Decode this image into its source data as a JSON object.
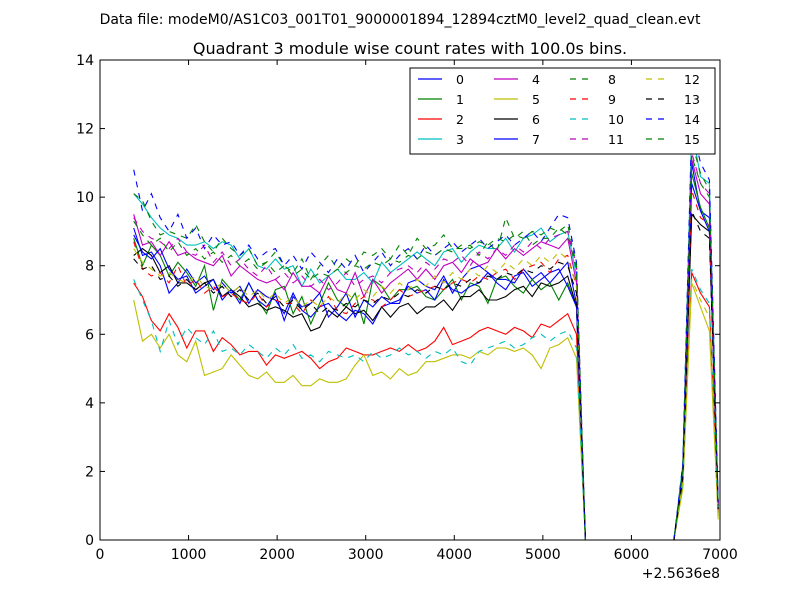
{
  "figure": {
    "suptitle": "Data file: modeM0/AS1C03_001T01_9000001894_12894cztM0_level2_quad_clean.evt"
  },
  "chart_data": {
    "type": "line",
    "title": "Quadrant 3 module wise count rates with 100.0s bins.",
    "xlabel": "",
    "ylabel": "",
    "xlim": [
      0,
      7000
    ],
    "ylim": [
      0,
      14
    ],
    "x_offset_label": "+2.5636e8",
    "x_ticks": [
      "0",
      "1000",
      "2000",
      "3000",
      "4000",
      "5000",
      "6000",
      "7000"
    ],
    "y_ticks": [
      "0",
      "2",
      "4",
      "6",
      "8",
      "10",
      "12",
      "14"
    ],
    "grid": false,
    "legend_placement": "top-right",
    "legend_columns": 4,
    "x": [
      380,
      480,
      580,
      680,
      780,
      880,
      980,
      1080,
      1180,
      1280,
      1380,
      1480,
      1580,
      1680,
      1780,
      1880,
      1980,
      2080,
      2180,
      2280,
      2380,
      2480,
      2580,
      2680,
      2780,
      2880,
      2980,
      3080,
      3180,
      3280,
      3380,
      3480,
      3580,
      3680,
      3780,
      3880,
      3980,
      4080,
      4180,
      4280,
      4380,
      4480,
      4580,
      4680,
      4780,
      4880,
      4980,
      5080,
      5180,
      5280,
      5380,
      5480,
      5580,
      5680,
      5780,
      5880,
      5980,
      6080,
      6180,
      6280,
      6380,
      6480,
      6580,
      6680,
      6780,
      6880,
      6980
    ],
    "series": [
      {
        "name": "0",
        "color": "#0000ff",
        "dash": "solid",
        "values": [
          9.1,
          8.3,
          8.4,
          8.0,
          7.2,
          7.5,
          7.9,
          7.5,
          7.7,
          7.3,
          7.5,
          7.2,
          7.4,
          6.9,
          7.3,
          7.1,
          7.0,
          6.6,
          7.2,
          6.7,
          6.5,
          6.8,
          6.9,
          6.6,
          6.4,
          6.7,
          6.6,
          6.3,
          6.8,
          6.9,
          6.9,
          7.5,
          7.6,
          7.4,
          7.3,
          7.7,
          7.2,
          7.6,
          7.9,
          8.0,
          7.8,
          7.6,
          7.6,
          7.5,
          7.9,
          7.6,
          7.8,
          7.5,
          7.8,
          8.1,
          6.9,
          0.0,
          0.0,
          0.0,
          0.0,
          0.0,
          0.0,
          0.0,
          0.0,
          0.0,
          0.0,
          0.0,
          2.0,
          11.0,
          9.6,
          9.4,
          1.0
        ]
      },
      {
        "name": "1",
        "color": "#008000",
        "dash": "solid",
        "values": [
          8.8,
          8.0,
          8.6,
          8.3,
          7.7,
          8.1,
          7.8,
          7.4,
          8.0,
          6.7,
          7.6,
          7.3,
          7.0,
          7.5,
          7.0,
          6.6,
          7.3,
          7.4,
          6.6,
          7.1,
          6.3,
          6.9,
          7.5,
          7.0,
          6.8,
          7.2,
          6.3,
          7.6,
          7.4,
          7.0,
          7.3,
          7.3,
          7.4,
          7.1,
          7.0,
          7.3,
          7.6,
          7.0,
          7.5,
          7.4,
          6.9,
          7.6,
          7.7,
          7.4,
          7.2,
          7.6,
          7.3,
          7.5,
          7.0,
          7.5,
          6.8,
          0.0,
          0.0,
          0.0,
          0.0,
          0.0,
          0.0,
          0.0,
          0.0,
          0.0,
          0.0,
          0.0,
          1.9,
          10.7,
          9.7,
          9.1,
          0.8
        ]
      },
      {
        "name": "2",
        "color": "#ff0000",
        "dash": "solid",
        "values": [
          7.5,
          7.1,
          6.4,
          6.1,
          6.6,
          6.2,
          5.6,
          6.1,
          6.1,
          5.5,
          5.9,
          5.7,
          5.4,
          5.5,
          5.5,
          5.1,
          5.4,
          5.3,
          5.4,
          5.5,
          5.3,
          5.0,
          5.2,
          5.3,
          5.6,
          5.5,
          5.4,
          5.4,
          5.5,
          5.6,
          5.5,
          5.7,
          5.5,
          5.6,
          5.8,
          6.2,
          5.7,
          5.8,
          5.9,
          6.1,
          6.2,
          6.1,
          6.0,
          6.2,
          6.1,
          5.9,
          6.3,
          6.2,
          6.4,
          6.6,
          6.0,
          0.0,
          0.0,
          0.0,
          0.0,
          0.0,
          0.0,
          0.0,
          0.0,
          0.0,
          0.0,
          0.0,
          1.7,
          7.8,
          7.2,
          6.8,
          0.8
        ]
      },
      {
        "name": "3",
        "color": "#00bfbf",
        "dash": "solid",
        "values": [
          10.1,
          9.8,
          9.4,
          9.1,
          8.9,
          8.8,
          8.6,
          8.6,
          8.7,
          8.5,
          8.7,
          8.6,
          8.2,
          8.5,
          8.0,
          7.9,
          8.2,
          7.9,
          8.0,
          7.4,
          7.9,
          7.5,
          7.7,
          7.9,
          7.6,
          7.6,
          7.8,
          7.5,
          8.1,
          7.8,
          8.0,
          8.2,
          8.4,
          8.2,
          8.0,
          8.4,
          8.5,
          8.1,
          8.4,
          8.6,
          8.5,
          8.5,
          8.8,
          8.4,
          8.8,
          8.9,
          9.1,
          8.7,
          8.9,
          9.0,
          7.7,
          0.0,
          0.0,
          0.0,
          0.0,
          0.0,
          0.0,
          0.0,
          0.0,
          0.0,
          0.0,
          0.0,
          2.2,
          12.0,
          10.6,
          10.4,
          1.0
        ]
      },
      {
        "name": "4",
        "color": "#bf00bf",
        "dash": "solid",
        "values": [
          9.5,
          8.6,
          8.7,
          8.3,
          8.7,
          8.3,
          8.4,
          8.2,
          8.1,
          8.0,
          8.3,
          7.7,
          8.0,
          7.8,
          7.6,
          7.5,
          7.6,
          7.3,
          7.8,
          7.4,
          7.4,
          7.2,
          7.7,
          7.3,
          7.2,
          7.8,
          7.1,
          7.6,
          7.2,
          7.5,
          7.7,
          7.9,
          7.6,
          7.9,
          7.6,
          8.0,
          8.1,
          7.8,
          8.2,
          8.0,
          8.1,
          8.5,
          8.2,
          8.5,
          8.3,
          8.5,
          8.7,
          8.6,
          8.5,
          8.8,
          7.5,
          0.0,
          0.0,
          0.0,
          0.0,
          0.0,
          0.0,
          0.0,
          0.0,
          0.0,
          0.0,
          0.0,
          2.0,
          11.1,
          10.1,
          9.8,
          1.0
        ]
      },
      {
        "name": "5",
        "color": "#bfbf00",
        "dash": "solid",
        "values": [
          7.0,
          5.8,
          6.0,
          5.6,
          6.0,
          5.4,
          5.2,
          5.8,
          4.8,
          4.9,
          5.0,
          5.4,
          5.1,
          4.8,
          4.7,
          4.9,
          4.6,
          4.6,
          4.8,
          4.5,
          4.5,
          4.7,
          4.6,
          4.6,
          4.7,
          5.1,
          5.4,
          4.8,
          4.9,
          4.7,
          5.0,
          4.8,
          4.9,
          5.2,
          5.2,
          5.3,
          5.4,
          5.4,
          5.3,
          5.5,
          5.4,
          5.6,
          5.6,
          5.5,
          5.6,
          5.4,
          5.0,
          5.6,
          5.7,
          5.9,
          5.3,
          0.0,
          0.0,
          0.0,
          0.0,
          0.0,
          0.0,
          0.0,
          0.0,
          0.0,
          0.0,
          0.0,
          1.5,
          7.5,
          6.8,
          6.1,
          0.6
        ]
      },
      {
        "name": "6",
        "color": "#000000",
        "dash": "solid",
        "values": [
          8.3,
          8.5,
          8.3,
          7.8,
          8.0,
          7.5,
          7.5,
          7.3,
          7.5,
          7.6,
          7.1,
          7.3,
          7.1,
          6.8,
          6.9,
          6.7,
          6.8,
          6.7,
          6.5,
          6.6,
          6.1,
          6.2,
          6.7,
          6.5,
          6.8,
          6.6,
          6.7,
          6.4,
          6.8,
          6.5,
          6.8,
          6.9,
          6.6,
          6.8,
          6.8,
          7.0,
          6.7,
          7.1,
          7.1,
          7.3,
          7.0,
          7.0,
          7.1,
          7.3,
          7.4,
          7.1,
          7.5,
          7.4,
          7.5,
          7.7,
          6.8,
          0.0,
          0.0,
          0.0,
          0.0,
          0.0,
          0.0,
          0.0,
          0.0,
          0.0,
          0.0,
          0.0,
          1.8,
          9.5,
          9.2,
          9.0,
          0.9
        ]
      },
      {
        "name": "7",
        "color": "#0000ff",
        "dash": "solid",
        "values": [
          8.9,
          8.4,
          8.2,
          8.5,
          7.9,
          7.6,
          7.7,
          7.2,
          7.4,
          7.6,
          7.0,
          7.3,
          6.9,
          7.5,
          7.0,
          6.8,
          7.2,
          6.4,
          7.1,
          6.8,
          6.9,
          7.2,
          6.5,
          6.8,
          7.2,
          6.5,
          7.0,
          6.8,
          7.1,
          6.9,
          7.0,
          7.4,
          7.2,
          7.3,
          7.0,
          7.6,
          7.3,
          7.2,
          7.4,
          7.5,
          7.8,
          7.5,
          7.3,
          7.7,
          7.8,
          7.4,
          7.6,
          7.8,
          7.9,
          7.4,
          6.8,
          0.0,
          0.0,
          0.0,
          0.0,
          0.0,
          0.0,
          0.0,
          0.0,
          0.0,
          0.0,
          0.0,
          2.0,
          10.4,
          9.6,
          9.0,
          1.0
        ]
      },
      {
        "name": "8",
        "color": "#008000",
        "dash": "dashed",
        "values": [
          10.1,
          9.9,
          9.3,
          8.9,
          9.0,
          8.9,
          8.8,
          9.2,
          8.7,
          8.4,
          8.8,
          8.5,
          8.3,
          8.5,
          8.0,
          8.1,
          8.4,
          8.0,
          7.8,
          8.2,
          7.6,
          8.0,
          8.3,
          7.9,
          8.2,
          8.0,
          8.4,
          8.3,
          8.5,
          8.2,
          8.6,
          8.3,
          8.8,
          8.5,
          8.6,
          8.9,
          8.5,
          8.5,
          8.6,
          8.3,
          8.7,
          8.4,
          9.4,
          8.8,
          9.0,
          8.6,
          8.8,
          8.8,
          9.1,
          8.9,
          7.9,
          0.0,
          0.0,
          0.0,
          0.0,
          0.0,
          0.0,
          0.0,
          0.0,
          0.0,
          0.0,
          0.0,
          2.1,
          11.6,
          10.7,
          10.2,
          1.0
        ]
      },
      {
        "name": "9",
        "color": "#ff0000",
        "dash": "dashed",
        "values": [
          8.7,
          7.9,
          7.7,
          7.8,
          7.5,
          8.0,
          7.4,
          7.6,
          7.2,
          7.4,
          7.1,
          7.2,
          7.0,
          6.9,
          7.2,
          6.8,
          7.0,
          6.9,
          6.9,
          6.6,
          7.0,
          6.8,
          7.1,
          6.7,
          6.6,
          6.9,
          7.1,
          7.0,
          6.8,
          7.0,
          7.3,
          7.1,
          7.2,
          7.3,
          7.4,
          7.3,
          7.5,
          7.6,
          7.5,
          7.7,
          7.6,
          7.8,
          7.9,
          7.6,
          7.9,
          8.0,
          8.1,
          7.8,
          8.2,
          8.3,
          7.4,
          0.0,
          0.0,
          0.0,
          0.0,
          0.0,
          0.0,
          0.0,
          0.0,
          0.0,
          0.0,
          0.0,
          1.9,
          10.2,
          9.4,
          9.2,
          0.9
        ]
      },
      {
        "name": "10",
        "color": "#00bfbf",
        "dash": "dashed",
        "values": [
          7.6,
          7.0,
          6.4,
          5.5,
          6.4,
          5.7,
          6.2,
          5.9,
          5.7,
          6.1,
          5.5,
          5.6,
          5.4,
          5.7,
          5.5,
          5.3,
          5.6,
          5.4,
          5.7,
          5.3,
          5.4,
          5.2,
          5.5,
          5.4,
          5.3,
          5.4,
          5.2,
          5.5,
          5.3,
          5.4,
          5.6,
          5.4,
          5.5,
          5.3,
          5.5,
          5.4,
          5.6,
          5.2,
          5.1,
          5.5,
          5.6,
          5.7,
          5.8,
          5.6,
          5.7,
          5.9,
          6.0,
          5.8,
          6.0,
          6.1,
          5.6,
          0.0,
          0.0,
          0.0,
          0.0,
          0.0,
          0.0,
          0.0,
          0.0,
          0.0,
          0.0,
          0.0,
          1.6,
          7.9,
          7.3,
          6.9,
          0.7
        ]
      },
      {
        "name": "11",
        "color": "#bf00bf",
        "dash": "dashed",
        "values": [
          9.4,
          9.0,
          8.8,
          8.7,
          8.5,
          8.8,
          8.4,
          8.3,
          8.6,
          8.1,
          8.4,
          8.0,
          8.2,
          7.9,
          7.7,
          8.0,
          7.6,
          7.8,
          7.5,
          7.7,
          7.4,
          7.6,
          7.3,
          7.5,
          7.8,
          7.4,
          7.6,
          7.7,
          7.5,
          7.8,
          7.9,
          8.0,
          7.8,
          8.1,
          7.9,
          8.2,
          8.1,
          8.3,
          8.0,
          8.4,
          8.2,
          8.5,
          8.3,
          8.6,
          8.4,
          8.7,
          8.5,
          8.8,
          8.9,
          9.0,
          8.0,
          0.0,
          0.0,
          0.0,
          0.0,
          0.0,
          0.0,
          0.0,
          0.0,
          0.0,
          0.0,
          0.0,
          2.0,
          11.3,
          10.4,
          10.1,
          1.0
        ]
      },
      {
        "name": "12",
        "color": "#bfbf00",
        "dash": "dashed",
        "values": [
          8.5,
          8.1,
          7.9,
          7.7,
          7.8,
          7.6,
          7.5,
          7.7,
          7.4,
          7.3,
          7.5,
          7.2,
          7.4,
          7.1,
          7.3,
          7.0,
          7.2,
          6.9,
          7.1,
          6.8,
          7.0,
          6.8,
          7.1,
          6.9,
          7.2,
          7.0,
          7.3,
          7.1,
          7.4,
          7.2,
          7.5,
          7.3,
          7.6,
          7.4,
          7.7,
          7.5,
          7.8,
          7.6,
          7.9,
          7.7,
          8.0,
          7.8,
          8.1,
          7.9,
          8.2,
          8.0,
          8.3,
          8.1,
          8.4,
          8.2,
          7.4,
          0.0,
          0.0,
          0.0,
          0.0,
          0.0,
          0.0,
          0.0,
          0.0,
          0.0,
          0.0,
          0.0,
          1.7,
          7.6,
          7.0,
          6.5,
          0.7
        ]
      },
      {
        "name": "13",
        "color": "#000000",
        "dash": "dashed",
        "values": [
          8.2,
          7.9,
          8.0,
          7.6,
          7.7,
          7.4,
          7.6,
          7.3,
          7.5,
          7.2,
          7.4,
          7.1,
          7.3,
          7.0,
          7.2,
          6.9,
          7.1,
          6.8,
          7.0,
          6.7,
          6.9,
          6.6,
          6.8,
          6.7,
          6.9,
          6.8,
          7.0,
          6.9,
          7.1,
          7.0,
          7.2,
          7.1,
          7.3,
          7.2,
          7.4,
          7.3,
          7.5,
          7.4,
          7.6,
          7.5,
          7.7,
          7.6,
          7.8,
          7.7,
          7.9,
          7.8,
          8.0,
          7.9,
          8.1,
          8.0,
          7.2,
          0.0,
          0.0,
          0.0,
          0.0,
          0.0,
          0.0,
          0.0,
          0.0,
          0.0,
          0.0,
          0.0,
          1.9,
          9.6,
          9.0,
          8.8,
          0.9
        ]
      },
      {
        "name": "14",
        "color": "#0000ff",
        "dash": "dashed",
        "values": [
          10.8,
          9.6,
          10.1,
          9.4,
          9.0,
          9.5,
          8.8,
          9.1,
          8.5,
          8.9,
          8.6,
          8.7,
          8.3,
          8.6,
          8.2,
          8.4,
          8.5,
          8.0,
          8.3,
          7.9,
          8.4,
          8.1,
          7.8,
          8.2,
          7.9,
          8.3,
          7.8,
          8.1,
          8.4,
          8.0,
          8.3,
          8.5,
          8.2,
          8.6,
          8.3,
          8.5,
          8.7,
          8.4,
          8.6,
          8.8,
          8.5,
          8.7,
          8.9,
          8.6,
          8.8,
          9.0,
          8.7,
          9.1,
          9.5,
          9.4,
          8.1,
          0.0,
          0.0,
          0.0,
          0.0,
          0.0,
          0.0,
          0.0,
          0.0,
          0.0,
          0.0,
          0.0,
          2.2,
          12.1,
          11.0,
          10.5,
          1.1
        ]
      },
      {
        "name": "15",
        "color": "#008000",
        "dash": "dashed",
        "values": [
          9.3,
          8.9,
          8.6,
          8.8,
          8.4,
          8.7,
          8.3,
          8.5,
          8.2,
          8.4,
          8.1,
          8.3,
          8.0,
          8.2,
          7.9,
          8.1,
          7.8,
          8.0,
          7.7,
          7.9,
          7.6,
          7.8,
          7.7,
          7.9,
          7.8,
          8.0,
          7.9,
          8.1,
          8.0,
          8.2,
          8.1,
          8.3,
          8.2,
          8.4,
          8.3,
          8.5,
          8.4,
          8.6,
          8.5,
          8.7,
          8.6,
          8.8,
          8.7,
          8.9,
          8.8,
          9.0,
          8.9,
          9.1,
          9.0,
          9.2,
          8.0,
          0.0,
          0.0,
          0.0,
          0.0,
          0.0,
          0.0,
          0.0,
          0.0,
          0.0,
          0.0,
          0.0,
          2.0,
          11.2,
          10.4,
          10.0,
          1.0
        ]
      }
    ]
  }
}
